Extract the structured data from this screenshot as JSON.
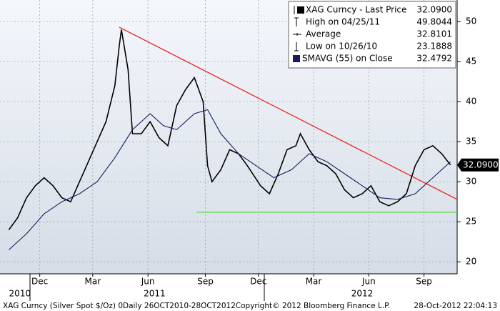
{
  "chart_data": {
    "type": "line",
    "series": [
      {
        "name": "XAG Curncy - Last Price",
        "color": "#000000",
        "last_value": {
          "value": 32.09,
          "label": "32.0900"
        },
        "x": [
          2010.82,
          2010.86,
          2010.9,
          2010.94,
          2010.98,
          2011.02,
          2011.06,
          2011.1,
          2011.14,
          2011.18,
          2011.22,
          2011.26,
          2011.3,
          2011.32,
          2011.33,
          2011.36,
          2011.38,
          2011.42,
          2011.46,
          2011.5,
          2011.54,
          2011.58,
          2011.62,
          2011.66,
          2011.7,
          2011.72,
          2011.74,
          2011.78,
          2011.82,
          2011.86,
          2011.9,
          2011.96,
          2012.0,
          2012.04,
          2012.08,
          2012.12,
          2012.14,
          2012.18,
          2012.22,
          2012.26,
          2012.3,
          2012.34,
          2012.38,
          2012.42,
          2012.46,
          2012.5,
          2012.54,
          2012.58,
          2012.62,
          2012.66,
          2012.7,
          2012.74,
          2012.78,
          2012.82
        ],
        "values": [
          24.0,
          25.5,
          28.0,
          29.5,
          30.5,
          29.5,
          28.0,
          27.5,
          30.0,
          32.5,
          35.0,
          37.5,
          42.0,
          47.0,
          49.0,
          44.0,
          36.0,
          36.0,
          37.5,
          35.5,
          34.5,
          39.5,
          41.5,
          43.0,
          40.0,
          32.0,
          30.0,
          31.5,
          34.0,
          33.5,
          32.0,
          29.5,
          28.5,
          31.0,
          34.0,
          34.5,
          36.0,
          34.0,
          32.5,
          32.0,
          31.0,
          29.0,
          28.0,
          28.5,
          29.5,
          27.5,
          27.0,
          27.5,
          28.5,
          32.0,
          34.0,
          34.5,
          33.5,
          32.1
        ]
      },
      {
        "name": "SMAVG (55) on Close",
        "color": "#1a1a5e",
        "last_value": 32.4792,
        "x": [
          2010.82,
          2010.9,
          2010.98,
          2011.06,
          2011.14,
          2011.22,
          2011.3,
          2011.38,
          2011.46,
          2011.52,
          2011.58,
          2011.66,
          2011.72,
          2011.78,
          2011.86,
          2011.94,
          2012.02,
          2012.1,
          2012.18,
          2012.26,
          2012.34,
          2012.42,
          2012.5,
          2012.58,
          2012.66,
          2012.74,
          2012.82
        ],
        "values": [
          21.5,
          23.5,
          26.0,
          27.5,
          28.5,
          30.0,
          33.0,
          36.5,
          38.5,
          37.0,
          36.5,
          38.5,
          39.0,
          36.0,
          33.5,
          32.0,
          30.5,
          31.5,
          33.5,
          32.5,
          31.0,
          29.5,
          28.0,
          27.8,
          28.5,
          30.5,
          32.5
        ]
      }
    ],
    "stats": [
      {
        "label": "High on 04/25/11",
        "value": 49.8044
      },
      {
        "label": "Average",
        "value": 32.8101
      },
      {
        "label": "Low on 10/26/10",
        "value": 23.1888
      }
    ],
    "lines": [
      {
        "color": "#e8251f",
        "x": [
          2011.32,
          2012.85
        ],
        "values": [
          49.3,
          27.8
        ]
      },
      {
        "color": "#55e04a",
        "x": [
          2011.67,
          2012.85
        ],
        "values": [
          26.2,
          26.2
        ]
      }
    ],
    "xlim": [
      2010.78,
      2012.85
    ],
    "ylim": [
      18.5,
      52.7
    ],
    "yticks": [
      20,
      25,
      30,
      35,
      40,
      45,
      50
    ],
    "xticks": [
      {
        "value": 2010.96,
        "label": "Dec"
      },
      {
        "value": 2011.2,
        "label": "Mar"
      },
      {
        "value": 2011.45,
        "label": "Jun"
      },
      {
        "value": 2011.71,
        "label": "Sep"
      },
      {
        "value": 2011.95,
        "label": "Dec"
      },
      {
        "value": 2012.2,
        "label": "Mar"
      },
      {
        "value": 2012.45,
        "label": "Jun"
      },
      {
        "value": 2012.7,
        "label": "Sep"
      }
    ],
    "year_ticks": [
      {
        "value": 2010.87,
        "label": "2010"
      },
      {
        "value": 2011.48,
        "label": "2011"
      },
      {
        "value": 2012.42,
        "label": "2012"
      }
    ],
    "grid": true,
    "footer": [
      "XAG Curncy (Silver Spot $/Oz) 0Daily 26OCT2010-28OCT2012",
      "Copyright© 2012 Bloomberg Finance L.P.",
      "28-Oct-2012 22:04:13"
    ]
  }
}
